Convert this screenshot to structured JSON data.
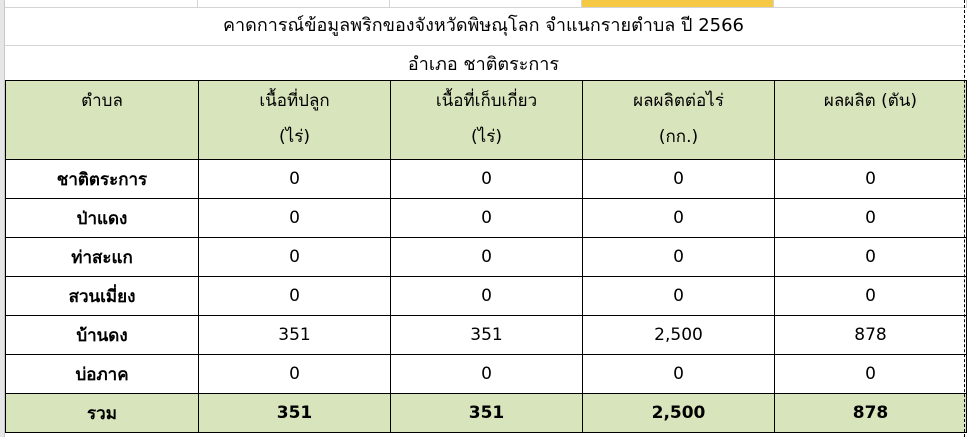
{
  "title": "คาดการณ์ข้อมูลพริกของจังหวัดพิษณุโลก จำแนกรายตำบล   ปี 2566",
  "subtitle": "อำเภอ ชาติตระการ",
  "accent_color": "#d8e4bc",
  "headers": [
    {
      "line1": "ตำบล",
      "line2": ""
    },
    {
      "line1": "เนื้อที่ปลูก",
      "line2": "(ไร่)"
    },
    {
      "line1": "เนื้อที่เก็บเกี่ยว",
      "line2": "(ไร่)"
    },
    {
      "line1": "ผลผลิตต่อไร่",
      "line2": "(กก.)"
    },
    {
      "line1": "ผลผลิต (ตัน)",
      "line2": ""
    }
  ],
  "rows": [
    [
      "ชาติตระการ",
      "0",
      "0",
      "0",
      "0"
    ],
    [
      "ป่าแดง",
      "0",
      "0",
      "0",
      "0"
    ],
    [
      "ท่าสะแก",
      "0",
      "0",
      "0",
      "0"
    ],
    [
      "สวนเมี่ยง",
      "0",
      "0",
      "0",
      "0"
    ],
    [
      "บ้านดง",
      "351",
      "351",
      "2,500",
      "878"
    ],
    [
      "บ่อภาค",
      "0",
      "0",
      "0",
      "0"
    ]
  ],
  "total": [
    "รวม",
    "351",
    "351",
    "2,500",
    "878"
  ]
}
